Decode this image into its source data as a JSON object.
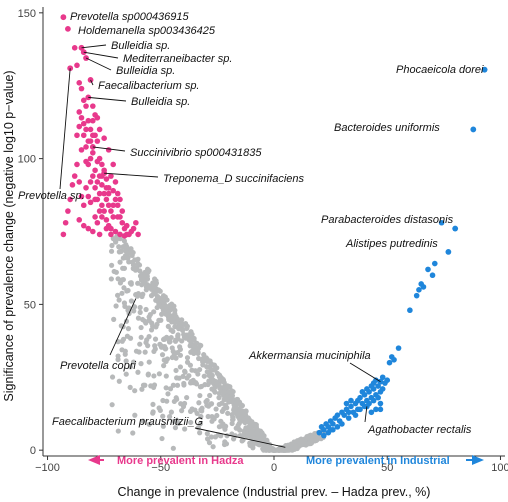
{
  "chart_data": {
    "type": "scatter",
    "xlabel": "Change in prevalence (Industrial prev. – Hadza prev., %)",
    "ylabel": "Significance of prevalence change (negative log10 p−value)",
    "xlim": [
      -102,
      102
    ],
    "ylim": [
      -2,
      152
    ],
    "x_ticks": [
      -100,
      -50,
      0,
      50,
      100
    ],
    "y_ticks": [
      0,
      50,
      100,
      150
    ],
    "grid": false,
    "colors": {
      "hadza": "#e8398c",
      "industrial": "#1f86db",
      "neutral": "#b7b9ba"
    },
    "region_labels": {
      "hadza": "More prevalent in Hadza",
      "industrial": "More prevalent in Industrial"
    },
    "series_colors_meaning": [
      "hadza",
      "industrial",
      "neutral"
    ],
    "labeled_points": [
      {
        "name": "Prevotella sp000436915",
        "x": -93,
        "y": 148.5,
        "group": "hadza"
      },
      {
        "name": "Holdemanella sp003436425",
        "x": -91,
        "y": 144.5,
        "group": "hadza"
      },
      {
        "name": "Bulleidia sp.",
        "x": -85,
        "y": 138,
        "group": "hadza"
      },
      {
        "name": "Mediterraneibacter sp.",
        "x": -84,
        "y": 136.5,
        "group": "hadza"
      },
      {
        "name": "Bulleidia sp.",
        "x": -83,
        "y": 134.5,
        "group": "hadza"
      },
      {
        "name": "Faecalibacterium sp.",
        "x": -81,
        "y": 127,
        "group": "hadza"
      },
      {
        "name": "Bulleidia sp.",
        "x": -82,
        "y": 121,
        "group": "hadza"
      },
      {
        "name": "Prevotella sp.",
        "x": -90,
        "y": 131,
        "group": "hadza"
      },
      {
        "name": "Succinivibrio sp000431835",
        "x": -80,
        "y": 104,
        "group": "hadza"
      },
      {
        "name": "Treponema_D succinifaciens",
        "x": -75,
        "y": 95,
        "group": "hadza"
      },
      {
        "name": "Prevotella copri",
        "x": -61,
        "y": 52,
        "group": "neutral"
      },
      {
        "name": "Faecalibacterium prausnitzii_G",
        "x": 5,
        "y": 1,
        "group": "neutral"
      },
      {
        "name": "Phocaeicola dorei",
        "x": 93,
        "y": 130.5,
        "group": "industrial"
      },
      {
        "name": "Bacteroides uniformis",
        "x": 88,
        "y": 110,
        "group": "industrial"
      },
      {
        "name": "Parabacteroides distasonis",
        "x": 80,
        "y": 76,
        "group": "industrial"
      },
      {
        "name": "Alistipes putredinis",
        "x": 77,
        "y": 68,
        "group": "industrial"
      },
      {
        "name": "Akkermansia muciniphila",
        "x": 47,
        "y": 23.5,
        "group": "industrial"
      },
      {
        "name": "Agathobacter rectalis",
        "x": 41,
        "y": 15,
        "group": "industrial"
      }
    ],
    "points": {
      "hadza": [
        [
          -88,
          138
        ],
        [
          -87,
          132
        ],
        [
          -86,
          126
        ],
        [
          -85,
          124
        ],
        [
          -84,
          120
        ],
        [
          -83,
          118
        ],
        [
          -82,
          113
        ],
        [
          -81,
          110
        ],
        [
          -80,
          113
        ],
        [
          -79,
          108
        ],
        [
          -86,
          116
        ],
        [
          -84,
          112
        ],
        [
          -82,
          106
        ],
        [
          -80,
          102
        ],
        [
          -78,
          106
        ],
        [
          -77,
          100
        ],
        [
          -76,
          98
        ],
        [
          -75,
          96
        ],
        [
          -74,
          93
        ],
        [
          -73,
          90
        ],
        [
          -80,
          118
        ],
        [
          -79,
          115
        ],
        [
          -78,
          99
        ],
        [
          -77,
          94
        ],
        [
          -76,
          91
        ],
        [
          -75,
          88
        ],
        [
          -74,
          86
        ],
        [
          -73,
          84
        ],
        [
          -72,
          82
        ],
        [
          -71,
          80
        ],
        [
          -70,
          86
        ],
        [
          -69,
          84
        ],
        [
          -68,
          80
        ],
        [
          -67,
          78
        ],
        [
          -66,
          76
        ],
        [
          -65,
          74
        ],
        [
          -70,
          92
        ],
        [
          -72,
          94
        ],
        [
          -71,
          89
        ],
        [
          -69,
          88
        ],
        [
          -84,
          108
        ],
        [
          -83,
          104
        ],
        [
          -81,
          100
        ],
        [
          -79,
          96
        ],
        [
          -78,
          92
        ],
        [
          -77,
          88
        ],
        [
          -76,
          84
        ],
        [
          -75,
          82
        ],
        [
          -74,
          79
        ],
        [
          -73,
          77
        ],
        [
          -82,
          98
        ],
        [
          -80,
          94
        ],
        [
          -79,
          90
        ],
        [
          -76,
          80
        ],
        [
          -74,
          76
        ],
        [
          -72,
          76
        ],
        [
          -70,
          75
        ],
        [
          -68,
          74
        ],
        [
          -66,
          73.5
        ],
        [
          -64,
          74
        ],
        [
          -79,
          86
        ],
        [
          -77,
          82
        ],
        [
          -85,
          103
        ],
        [
          -83,
          99
        ],
        [
          -81,
          92
        ],
        [
          -78,
          86
        ],
        [
          -87,
          98
        ],
        [
          -86,
          92
        ],
        [
          -85,
          87
        ],
        [
          -84,
          84
        ],
        [
          -72,
          74
        ],
        [
          -77,
          74
        ],
        [
          -79,
          80
        ],
        [
          -81,
          85
        ],
        [
          -83,
          90
        ],
        [
          -82,
          87
        ],
        [
          -88,
          94
        ],
        [
          -89,
          91
        ],
        [
          -90,
          86
        ],
        [
          -91,
          82
        ],
        [
          -92,
          78
        ],
        [
          -93,
          74
        ],
        [
          -86,
          79
        ],
        [
          -84,
          77
        ],
        [
          -82,
          76
        ],
        [
          -80,
          75
        ],
        [
          -78,
          78
        ],
        [
          -71,
          98
        ],
        [
          -73,
          103
        ],
        [
          -75,
          107
        ],
        [
          -77,
          110
        ],
        [
          -78,
          114
        ],
        [
          -80,
          108
        ],
        [
          -81,
          106
        ],
        [
          -83,
          110
        ],
        [
          -85,
          114
        ],
        [
          -86,
          111
        ],
        [
          -87,
          108
        ],
        [
          -63,
          75
        ],
        [
          -65,
          77
        ],
        [
          -67,
          82
        ],
        [
          -68,
          86
        ],
        [
          -69,
          80
        ],
        [
          -71,
          84
        ],
        [
          -73,
          88
        ],
        [
          -74,
          90
        ],
        [
          -76,
          94
        ],
        [
          -60,
          74
        ],
        [
          -62,
          76
        ],
        [
          -61,
          78
        ]
      ],
      "industrial": [
        [
          20,
          6
        ],
        [
          21,
          8
        ],
        [
          22,
          7
        ],
        [
          23,
          9
        ],
        [
          24,
          8
        ],
        [
          25,
          10
        ],
        [
          26,
          9
        ],
        [
          27,
          11
        ],
        [
          28,
          12
        ],
        [
          29,
          10
        ],
        [
          30,
          13
        ],
        [
          31,
          12
        ],
        [
          32,
          14
        ],
        [
          33,
          11
        ],
        [
          34,
          15
        ],
        [
          35,
          13
        ],
        [
          36,
          16
        ],
        [
          37,
          14
        ],
        [
          38,
          18
        ],
        [
          39,
          16
        ],
        [
          40,
          19
        ],
        [
          41,
          17
        ],
        [
          42,
          20
        ],
        [
          43,
          18
        ],
        [
          44,
          21
        ],
        [
          45,
          19
        ],
        [
          46,
          22
        ],
        [
          45,
          24
        ],
        [
          44,
          23
        ],
        [
          43,
          22
        ],
        [
          46,
          18
        ],
        [
          47,
          20
        ],
        [
          48,
          21
        ],
        [
          49,
          23
        ],
        [
          30,
          9
        ],
        [
          28,
          8
        ],
        [
          26,
          7
        ],
        [
          24,
          6
        ],
        [
          36,
          12
        ],
        [
          38,
          14
        ],
        [
          40,
          15
        ],
        [
          42,
          16
        ],
        [
          44,
          17
        ],
        [
          34,
          17
        ],
        [
          32,
          16
        ],
        [
          39,
          20
        ],
        [
          41,
          21
        ],
        [
          43,
          13
        ],
        [
          45,
          14
        ],
        [
          47,
          16
        ],
        [
          51,
          30
        ],
        [
          52,
          32
        ],
        [
          53,
          31
        ],
        [
          55,
          35
        ],
        [
          60,
          48
        ],
        [
          63,
          53
        ],
        [
          64,
          55
        ],
        [
          65,
          57
        ],
        [
          66,
          56
        ],
        [
          68,
          62
        ],
        [
          70,
          60
        ],
        [
          71,
          64
        ],
        [
          74,
          78
        ],
        [
          22,
          5
        ],
        [
          25,
          7
        ],
        [
          33,
          13
        ],
        [
          37,
          17
        ],
        [
          47,
          14
        ],
        [
          50,
          24
        ],
        [
          48,
          25
        ]
      ],
      "neutral_seed": 7
    }
  }
}
